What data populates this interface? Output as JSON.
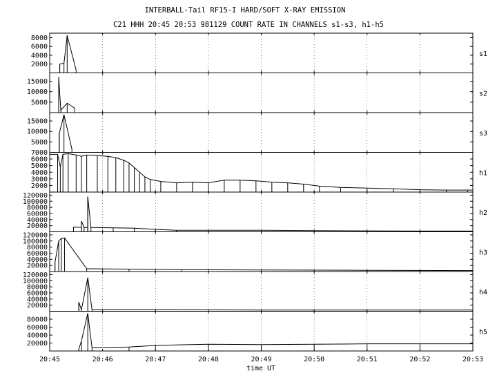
{
  "chart_data": {
    "type": "bar",
    "title": "INTERBALL-Tail RF15-I HARD/SOFT X-RAY EMISSION",
    "subtitle": "C21 HHH 20:45 20:53 981129  COUNT RATE IN CHANNELS s1-s3, h1-h5",
    "xlabel": "time UT",
    "x_ticks": [
      "20:45",
      "20:46",
      "20:47",
      "20:48",
      "20:49",
      "20:50",
      "20:51",
      "20:52",
      "20:53"
    ],
    "xlim": [
      0,
      8
    ],
    "grid": true,
    "panels": [
      {
        "name": "s1",
        "ylim": [
          0,
          9000
        ],
        "yticks": [
          2000,
          4000,
          6000,
          8000
        ],
        "ytick_labels": [
          "2000",
          "4000",
          "6000",
          "8000"
        ],
        "points": [
          [
            0.19,
            2000
          ],
          [
            0.27,
            2200
          ],
          [
            0.33,
            8500
          ],
          [
            0.5,
            600
          ]
        ]
      },
      {
        "name": "s2",
        "ylim": [
          0,
          19000
        ],
        "yticks": [
          5000,
          10000,
          15000
        ],
        "ytick_labels": [
          "5000",
          "10000",
          "15000"
        ],
        "points": [
          [
            0.17,
            17000
          ],
          [
            0.21,
            1200
          ],
          [
            0.33,
            4500
          ],
          [
            0.47,
            2200
          ]
        ]
      },
      {
        "name": "s3",
        "ylim": [
          0,
          19000
        ],
        "yticks": [
          5000,
          10000,
          15000
        ],
        "ytick_labels": [
          "5000",
          "10000",
          "15000"
        ],
        "points": [
          [
            0.18,
            9000
          ],
          [
            0.27,
            18000
          ],
          [
            0.42,
            1500
          ]
        ]
      },
      {
        "name": "h1",
        "ylim": [
          1000,
          7000
        ],
        "yticks": [
          2000,
          3000,
          4000,
          5000,
          6000,
          7000
        ],
        "ytick_labels": [
          "2000",
          "3000",
          "4000",
          "5000",
          "6000",
          "7000"
        ],
        "points": [
          [
            0.0,
            6700
          ],
          [
            0.15,
            6700
          ],
          [
            0.2,
            4800
          ],
          [
            0.25,
            6700
          ],
          [
            0.35,
            6800
          ],
          [
            0.5,
            6600
          ],
          [
            0.6,
            6400
          ],
          [
            0.7,
            6600
          ],
          [
            0.9,
            6500
          ],
          [
            1.1,
            6400
          ],
          [
            1.25,
            6200
          ],
          [
            1.4,
            5800
          ],
          [
            1.5,
            5400
          ],
          [
            1.6,
            4700
          ],
          [
            1.7,
            4000
          ],
          [
            1.8,
            3300
          ],
          [
            1.9,
            2900
          ],
          [
            2.1,
            2600
          ],
          [
            2.4,
            2400
          ],
          [
            2.7,
            2500
          ],
          [
            3.0,
            2400
          ],
          [
            3.3,
            2800
          ],
          [
            3.6,
            2800
          ],
          [
            3.9,
            2700
          ],
          [
            4.2,
            2500
          ],
          [
            4.5,
            2400
          ],
          [
            4.8,
            2200
          ],
          [
            5.1,
            1900
          ],
          [
            5.5,
            1700
          ],
          [
            6.0,
            1600
          ],
          [
            6.5,
            1500
          ],
          [
            7.0,
            1350
          ],
          [
            7.5,
            1300
          ],
          [
            7.9,
            1300
          ],
          [
            8.0,
            1300
          ]
        ]
      },
      {
        "name": "h2",
        "ylim": [
          0,
          130000
        ],
        "yticks": [
          20000,
          40000,
          60000,
          80000,
          100000,
          120000
        ],
        "ytick_labels": [
          "20000",
          "40000",
          "60000",
          "80000",
          "100000",
          "120000"
        ],
        "points": [
          [
            0.45,
            15000
          ],
          [
            0.6,
            15000
          ],
          [
            0.6,
            35000
          ],
          [
            0.65,
            14000
          ],
          [
            0.72,
            14500
          ],
          [
            0.72,
            115000
          ],
          [
            0.78,
            14000
          ],
          [
            1.2,
            13000
          ],
          [
            1.6,
            12000
          ],
          [
            2.0,
            8000
          ],
          [
            2.4,
            5000
          ],
          [
            3.0,
            5000
          ],
          [
            4.0,
            5000
          ],
          [
            5.0,
            4000
          ],
          [
            6.0,
            3000
          ],
          [
            7.0,
            2500
          ],
          [
            8.0,
            2500
          ]
        ]
      },
      {
        "name": "h3",
        "ylim": [
          0,
          130000
        ],
        "yticks": [
          20000,
          40000,
          60000,
          80000,
          100000,
          120000
        ],
        "ytick_labels": [
          "20000",
          "40000",
          "60000",
          "80000",
          "100000",
          "120000"
        ],
        "points": [
          [
            0.1,
            30000
          ],
          [
            0.17,
            100000
          ],
          [
            0.22,
            108000
          ],
          [
            0.28,
            110000
          ],
          [
            0.7,
            9000
          ],
          [
            1.5,
            8000
          ],
          [
            2.5,
            6000
          ],
          [
            4.0,
            5000
          ],
          [
            6.0,
            4000
          ],
          [
            8.0,
            3000
          ]
        ]
      },
      {
        "name": "h4",
        "ylim": [
          0,
          130000
        ],
        "yticks": [
          20000,
          40000,
          60000,
          80000,
          100000,
          120000
        ],
        "ytick_labels": [
          "20000",
          "40000",
          "60000",
          "80000",
          "100000",
          "120000"
        ],
        "points": [
          [
            0.55,
            5000
          ],
          [
            0.55,
            30000
          ],
          [
            0.6,
            5000
          ],
          [
            0.72,
            110000
          ],
          [
            0.8,
            5000
          ],
          [
            2.0,
            5000
          ],
          [
            4.0,
            4000
          ],
          [
            6.0,
            4000
          ],
          [
            8.0,
            4000
          ]
        ]
      },
      {
        "name": "h5",
        "ylim": [
          0,
          100000
        ],
        "yticks": [
          20000,
          40000,
          60000,
          80000
        ],
        "ytick_labels": [
          "20000",
          "40000",
          "60000",
          "80000"
        ],
        "points": [
          [
            0.55,
            5000
          ],
          [
            0.6,
            25000
          ],
          [
            0.72,
            95000
          ],
          [
            0.8,
            8000
          ],
          [
            1.5,
            10000
          ],
          [
            2.0,
            14000
          ],
          [
            3.0,
            17000
          ],
          [
            4.0,
            16000
          ],
          [
            5.0,
            17000
          ],
          [
            6.0,
            18000
          ],
          [
            7.0,
            18000
          ],
          [
            8.0,
            18000
          ]
        ]
      }
    ]
  }
}
